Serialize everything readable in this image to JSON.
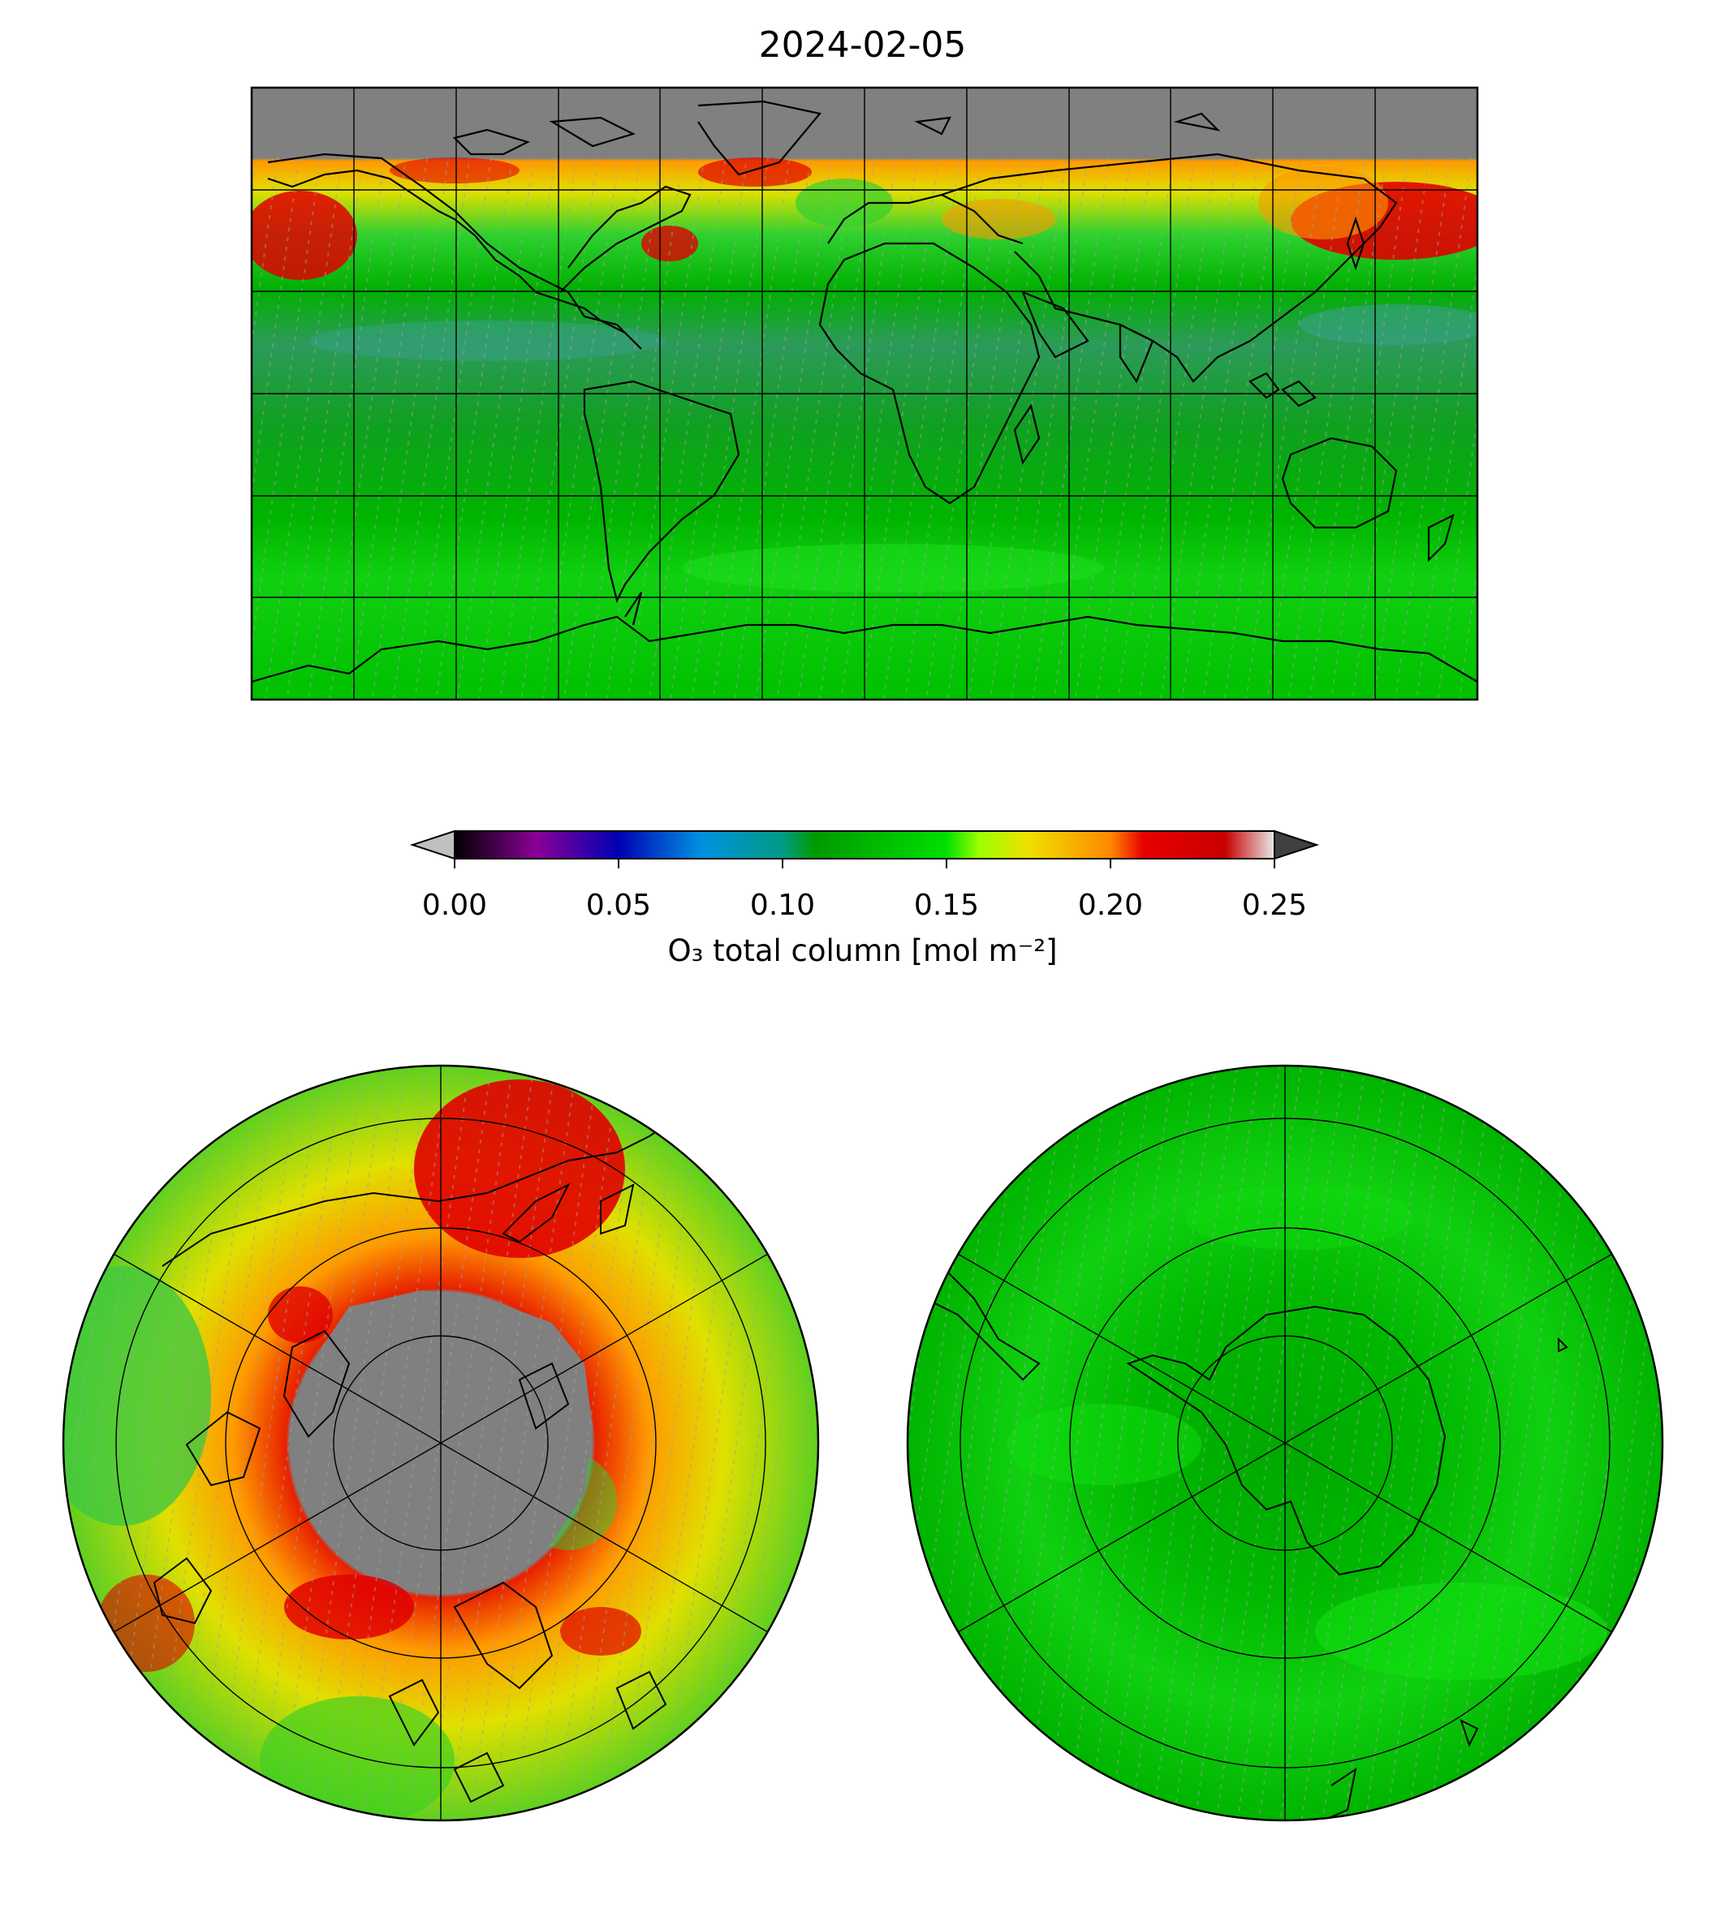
{
  "title": "2024-02-05",
  "colorbar": {
    "label": "O₃ total column [mol m⁻²]",
    "ticks": [
      "0.00",
      "0.05",
      "0.10",
      "0.15",
      "0.20",
      "0.25"
    ],
    "range": [
      0.0,
      0.25
    ],
    "extend": "both",
    "colors": {
      "0.00": "#000000",
      "0.025": "#8a0096",
      "0.05": "#0000b4",
      "0.075": "#0090e0",
      "0.10": "#009c86",
      "0.11": "#009a00",
      "0.15": "#00e000",
      "0.16": "#9cff00",
      "0.175": "#f0e000",
      "0.20": "#ff8800",
      "0.21": "#e80000",
      "0.235": "#c80000",
      "0.25": "#e0e0e0"
    },
    "under_color": "#c0c0c0",
    "over_color": "#404040"
  },
  "map_colors": {
    "missing": "#808080",
    "low_tropics": "#2d9a5a",
    "mid_green": "#00b400",
    "bright_green": "#10e010",
    "yellow": "#e0e000",
    "orange": "#ff9a00",
    "red": "#e00000",
    "coast": "#000000"
  }
}
